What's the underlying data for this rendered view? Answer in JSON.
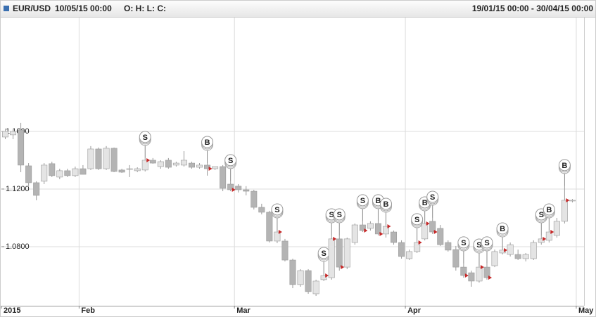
{
  "chart_data": {
    "type": "candlestick",
    "symbol": "EUR/USD",
    "cursor_time": "10/05/15 00:00",
    "ohlc_readout": "O: H: L: C:",
    "range_label": "19/01/15 00:00 - 30/04/15 00:00",
    "categories": [
      "2015",
      null,
      null,
      null,
      null,
      null,
      null,
      null,
      null,
      null,
      "Feb",
      null,
      null,
      null,
      null,
      null,
      null,
      null,
      null,
      null,
      null,
      null,
      null,
      null,
      null,
      null,
      null,
      null,
      null,
      null,
      "Mar",
      null,
      null,
      null,
      null,
      null,
      null,
      null,
      null,
      null,
      null,
      null,
      null,
      null,
      null,
      null,
      null,
      null,
      null,
      null,
      null,
      null,
      "Apr",
      null,
      null,
      null,
      null,
      null,
      null,
      null,
      null,
      null,
      null,
      null,
      null,
      null,
      null,
      null,
      null,
      null,
      null,
      null,
      null,
      null,
      "May"
    ],
    "open": [
      1.1561,
      1.1576,
      1.161,
      1.1361,
      1.1244,
      1.1254,
      1.1376,
      1.1283,
      1.1327,
      1.1293,
      1.1341,
      1.1341,
      1.1478,
      1.1341,
      1.1483,
      1.1332,
      1.1341,
      1.1327,
      1.1332,
      1.14,
      1.1356,
      1.14,
      1.1366,
      1.1366,
      1.138,
      1.1351,
      1.1366,
      1.1341,
      1.1356,
      1.1234,
      1.122,
      1.1195,
      1.1185,
      1.1073,
      1.1039,
      1.0839,
      1.0839,
      1.0707,
      1.0537,
      1.0634,
      1.0473,
      1.0571,
      1.0585,
      1.0854,
      1.0658,
      1.0829,
      1.0951,
      1.0927,
      1.0961,
      1.0888,
      1.0902,
      1.0829,
      1.0717,
      1.0766,
      1.0854,
      1.0976,
      1.0927,
      1.0829,
      1.078,
      1.0658,
      1.0619,
      1.0561,
      1.0658,
      1.0668,
      1.0756,
      1.0746,
      1.0746,
      1.0717,
      1.0717,
      1.0829,
      1.0844,
      1.0878,
      1.0976,
      1.1117,
      null
    ],
    "high": [
      1.162,
      1.161,
      1.1659,
      1.138,
      1.1254,
      1.138,
      1.139,
      1.1341,
      1.1341,
      1.1356,
      1.1366,
      1.1498,
      1.1488,
      1.1498,
      1.1488,
      1.1341,
      1.1366,
      1.1351,
      1.1415,
      1.1415,
      1.14,
      1.1415,
      1.139,
      1.1463,
      1.139,
      1.138,
      1.138,
      1.1356,
      1.1366,
      1.1254,
      1.1234,
      1.122,
      1.1195,
      1.1098,
      1.1049,
      1.0912,
      1.0854,
      1.0717,
      1.0644,
      1.0644,
      1.0571,
      1.061,
      1.0878,
      1.0878,
      1.0863,
      1.0961,
      1.0976,
      1.0976,
      1.0976,
      1.0951,
      1.0912,
      1.0844,
      1.078,
      1.0844,
      1.0961,
      1.1,
      1.0951,
      1.0844,
      1.0805,
      1.0683,
      1.0634,
      1.0668,
      1.0683,
      1.078,
      1.078,
      1.0829,
      1.078,
      1.0756,
      1.0844,
      1.0878,
      1.0912,
      1.1,
      1.122,
      1.1131,
      null
    ],
    "low": [
      1.1546,
      1.1546,
      1.1317,
      1.122,
      1.1122,
      1.1234,
      1.1283,
      1.1268,
      1.1283,
      1.1283,
      1.1302,
      1.1332,
      1.1332,
      1.1332,
      1.1317,
      1.1312,
      1.1283,
      1.1317,
      1.1322,
      1.1376,
      1.1341,
      1.1341,
      1.1356,
      1.1356,
      1.1341,
      1.1341,
      1.1293,
      1.1332,
      1.1185,
      1.1185,
      1.1176,
      1.1156,
      1.1058,
      1.1024,
      1.0829,
      1.0824,
      1.0698,
      1.0512,
      1.0522,
      1.0473,
      1.0458,
      1.0561,
      1.0571,
      1.0634,
      1.0644,
      1.0814,
      1.0902,
      1.0912,
      1.0878,
      1.0863,
      1.0814,
      1.0717,
      1.0707,
      1.0756,
      1.0844,
      1.0888,
      1.0805,
      1.0766,
      1.0634,
      1.0585,
      1.0522,
      1.0551,
      1.0571,
      1.0658,
      1.0746,
      1.0732,
      1.0707,
      1.0698,
      1.0707,
      1.0814,
      1.0829,
      1.0863,
      1.0961,
      1.1107,
      null
    ],
    "close": [
      1.16,
      1.16,
      1.1366,
      1.1244,
      1.1156,
      1.1366,
      1.1293,
      1.1327,
      1.1293,
      1.1341,
      1.1302,
      1.1478,
      1.1341,
      1.1483,
      1.1322,
      1.1317,
      1.1341,
      1.1341,
      1.14,
      1.138,
      1.139,
      1.1351,
      1.138,
      1.14,
      1.1351,
      1.1366,
      1.1341,
      1.1356,
      1.1205,
      1.1195,
      1.1195,
      1.1185,
      1.1073,
      1.1039,
      1.0839,
      1.0902,
      1.0707,
      1.0537,
      1.0634,
      1.0488,
      1.0561,
      1.06,
      1.0854,
      1.0658,
      1.0854,
      1.0951,
      1.0912,
      1.0961,
      1.0888,
      1.0941,
      1.0829,
      1.0732,
      1.0766,
      1.0829,
      1.0961,
      1.0902,
      1.0814,
      1.0776,
      1.0658,
      1.06,
      1.0561,
      1.0658,
      1.0585,
      1.0766,
      1.0776,
      1.0814,
      1.0717,
      1.0746,
      1.0829,
      1.0854,
      1.0902,
      1.0976,
      1.1122,
      1.1122,
      null
    ],
    "signals": [
      null,
      null,
      null,
      null,
      null,
      null,
      null,
      null,
      null,
      null,
      null,
      null,
      null,
      null,
      null,
      null,
      null,
      null,
      {
        "label": "S",
        "color": "#c62828"
      },
      null,
      null,
      null,
      null,
      null,
      null,
      null,
      {
        "label": "B",
        "color": "#c62828"
      },
      null,
      null,
      {
        "label": "S",
        "color": "#c62828"
      },
      null,
      null,
      null,
      null,
      null,
      {
        "label": "S",
        "color": "#c62828"
      },
      null,
      null,
      null,
      null,
      null,
      {
        "label": "S",
        "color": "#c62828"
      },
      {
        "label": "S",
        "color": "#c62828"
      },
      {
        "label": "S",
        "color": "#c62828"
      },
      null,
      null,
      {
        "label": "S",
        "color": "#c62828"
      },
      null,
      {
        "label": "B",
        "color": "#c62828"
      },
      {
        "label": "B",
        "color": "#c62828"
      },
      null,
      null,
      null,
      {
        "label": "S",
        "color": "#c62828"
      },
      {
        "label": "B",
        "color": "#c62828"
      },
      {
        "label": "S",
        "color": "#c62828"
      },
      null,
      null,
      null,
      {
        "label": "S",
        "color": "#c62828"
      },
      null,
      {
        "label": "S",
        "color": "#c62828"
      },
      {
        "label": "S",
        "color": "#c62828"
      },
      null,
      {
        "label": "B",
        "color": "#c62828"
      },
      null,
      null,
      null,
      null,
      {
        "label": "S",
        "color": "#c62828"
      },
      {
        "label": "B",
        "color": "#c62828"
      },
      null,
      {
        "label": "B",
        "color": "#c62828"
      },
      null,
      null
    ],
    "up_color": "#e4e4e4",
    "down_color": "#b4b4b4",
    "wick_color": "#999999",
    "ylim": [
      1.039,
      1.239
    ],
    "yticks": [
      {
        "value": 1.08,
        "label": "1.0800"
      },
      {
        "value": 1.12,
        "label": "1.1200"
      },
      {
        "value": 1.16,
        "label": "1.1600"
      }
    ],
    "grid": true
  }
}
